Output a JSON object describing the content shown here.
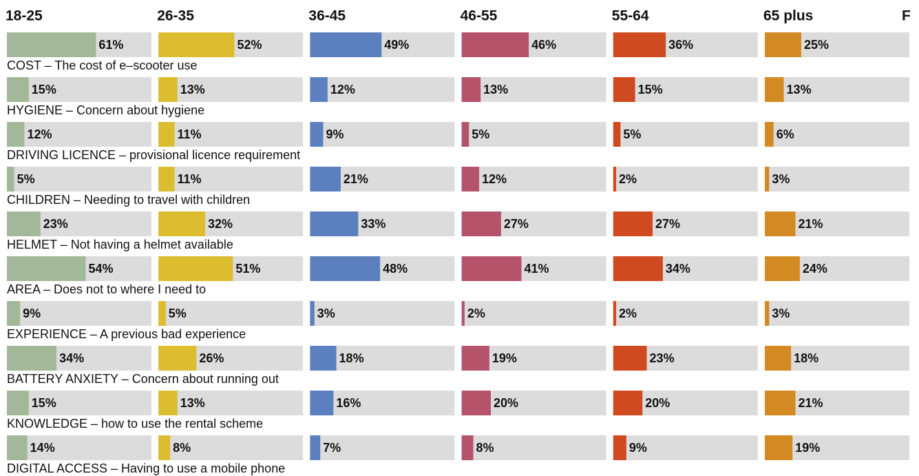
{
  "chart_data": {
    "type": "bar",
    "orientation": "horizontal",
    "annotation": "F",
    "xlim": [
      0,
      100
    ],
    "categories": [
      "COST – The cost of e–scooter use",
      "HYGIENE – Concern about hygiene",
      "DRIVING LICENCE – provisional licence requirement",
      "CHILDREN – Needing to travel with children",
      "HELMET – Not having a helmet available",
      "AREA – Does not to where I need to",
      "EXPERIENCE – A previous bad experience",
      "BATTERY ANXIETY – Concern about running out",
      "KNOWLEDGE – how to use the rental scheme",
      "DIGITAL ACCESS – Having to use a mobile phone"
    ],
    "series": [
      {
        "name": "18-25",
        "color": "#a3b899",
        "values": [
          61,
          15,
          12,
          5,
          23,
          54,
          9,
          34,
          15,
          14
        ],
        "value_labels": [
          "61%",
          "15%",
          "12%",
          "5%",
          "23%",
          "54%",
          "9%",
          "34%",
          "15%",
          "14%"
        ]
      },
      {
        "name": "26-35",
        "color": "#dbbd2f",
        "values": [
          52,
          13,
          11,
          11,
          32,
          51,
          5,
          26,
          13,
          8
        ],
        "value_labels": [
          "52%",
          "13%",
          "11%",
          "11%",
          "32%",
          "51%",
          "5%",
          "26%",
          "13%",
          "8%"
        ]
      },
      {
        "name": "36-45",
        "color": "#5b7fbf",
        "values": [
          49,
          12,
          9,
          21,
          33,
          48,
          3,
          18,
          16,
          7
        ],
        "value_labels": [
          "49%",
          "12%",
          "9%",
          "21%",
          "33%",
          "48%",
          "3%",
          "18%",
          "16%",
          "7%"
        ]
      },
      {
        "name": "46-55",
        "color": "#b5536b",
        "values": [
          46,
          13,
          5,
          12,
          27,
          41,
          2,
          19,
          20,
          8
        ],
        "value_labels": [
          "46%",
          "13%",
          "5%",
          "12%",
          "27%",
          "41%",
          "2%",
          "19%",
          "20%",
          "8%"
        ]
      },
      {
        "name": "55-64",
        "color": "#d04a21",
        "values": [
          36,
          15,
          5,
          2,
          27,
          34,
          2,
          23,
          20,
          9
        ],
        "value_labels": [
          "36%",
          "15%",
          "5%",
          "2%",
          "27%",
          "34%",
          "2%",
          "23%",
          "20%",
          "9%"
        ]
      },
      {
        "name": "65 plus",
        "color": "#d48a22",
        "values": [
          25,
          13,
          6,
          3,
          21,
          24,
          3,
          18,
          21,
          19
        ],
        "value_labels": [
          "25%",
          "13%",
          "6%",
          "3%",
          "21%",
          "24%",
          "3%",
          "18%",
          "21%",
          "19%"
        ]
      }
    ]
  }
}
